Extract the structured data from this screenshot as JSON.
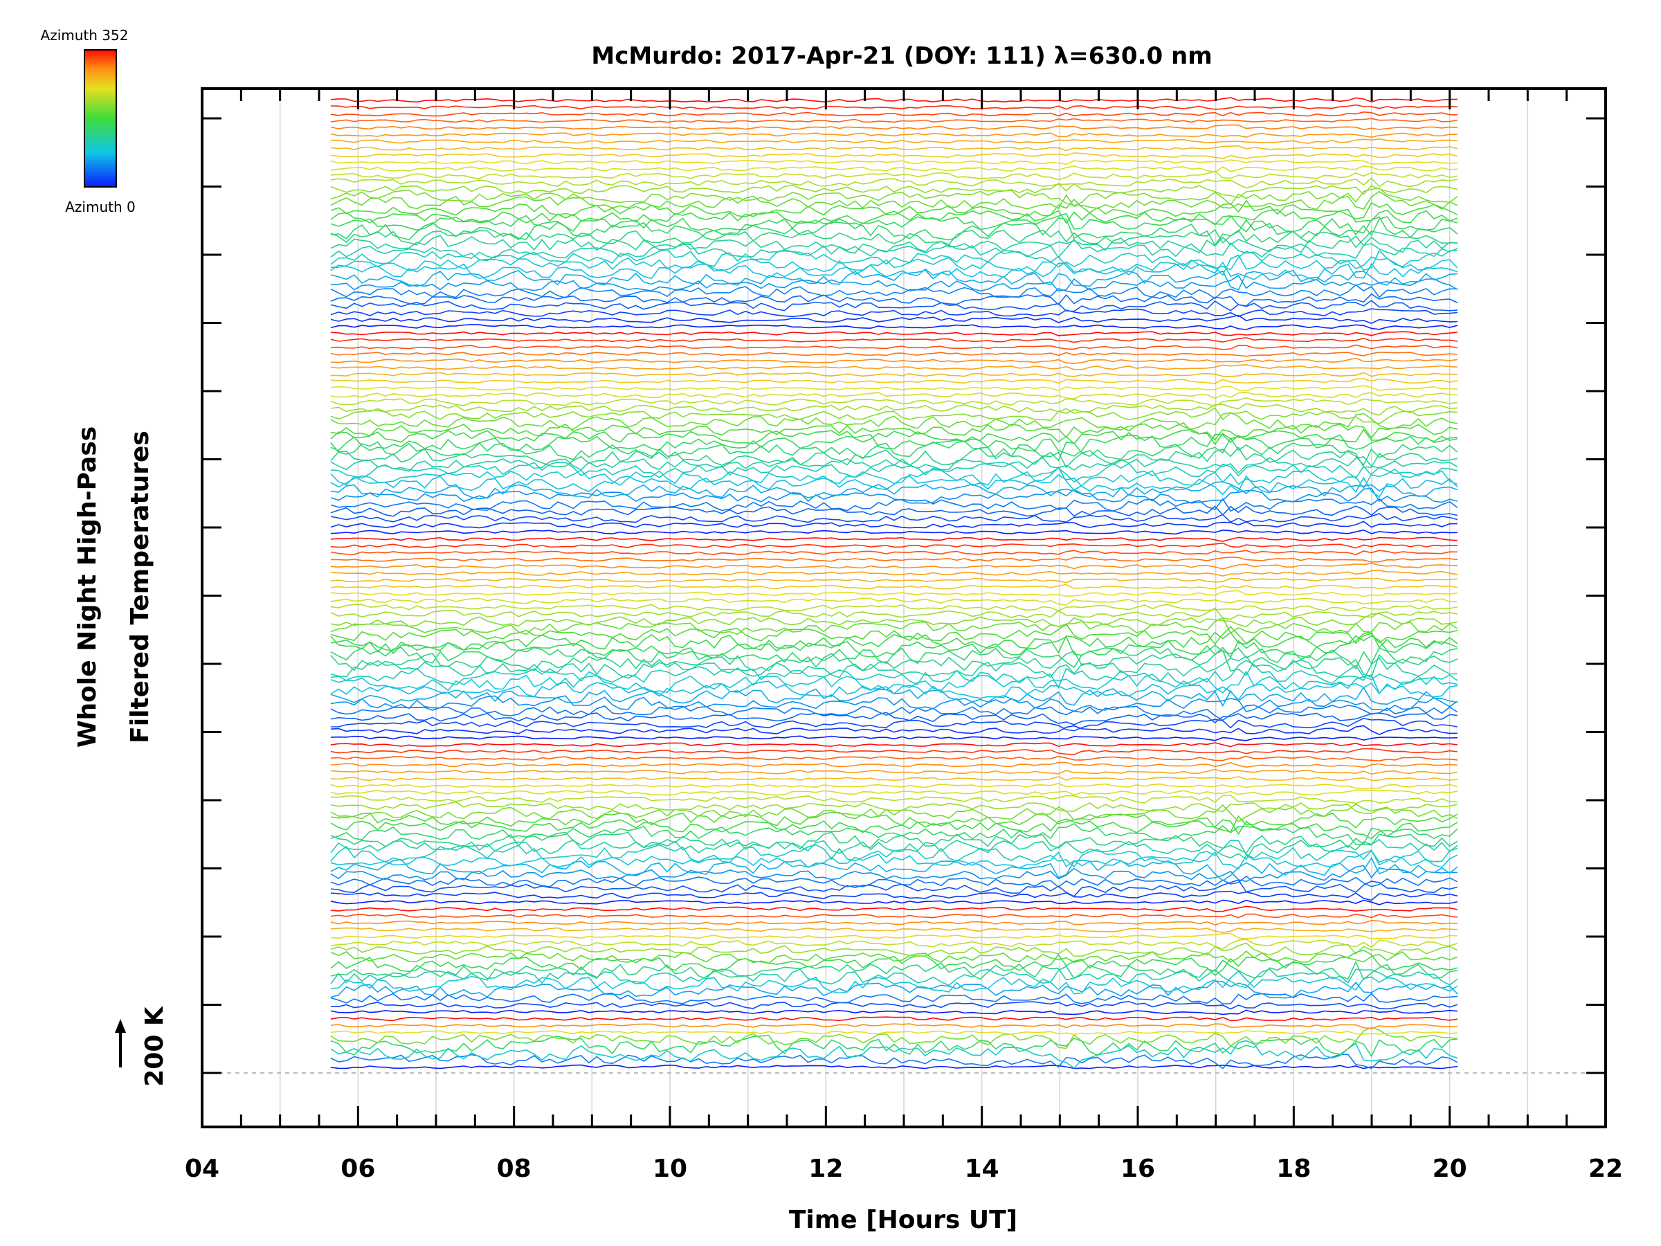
{
  "chart_data": {
    "type": "line",
    "title": "McMurdo: 2017-Apr-21 (DOY: 111) λ=630.0 nm",
    "xlabel": "Time [Hours UT]",
    "ylabel_line1": "Whole Night High-Pass",
    "ylabel_line2": "Filtered Temperatures",
    "xlim": [
      4,
      22
    ],
    "x_ticks": [
      "04",
      "06",
      "08",
      "10",
      "12",
      "14",
      "16",
      "18",
      "20",
      "22"
    ],
    "x_tick_values": [
      4,
      6,
      8,
      10,
      12,
      14,
      16,
      18,
      20,
      22
    ],
    "data_time_range": [
      5.65,
      20.1
    ],
    "scale_label": "200 K",
    "colorbar": {
      "top_label": "Azimuth 352",
      "bottom_label": "Azimuth 0",
      "azimuth_range": [
        0,
        352
      ]
    },
    "series_count": 142,
    "series_note": "One trace per sky direction, stacked vertically with a constant offset, coloured by azimuth (0 blue to 352 red); individual temperature values are too dense to read.",
    "colors": {
      "grid": "#d4d4d4",
      "axis": "#000000",
      "baseline": "#bbbbbb"
    }
  }
}
